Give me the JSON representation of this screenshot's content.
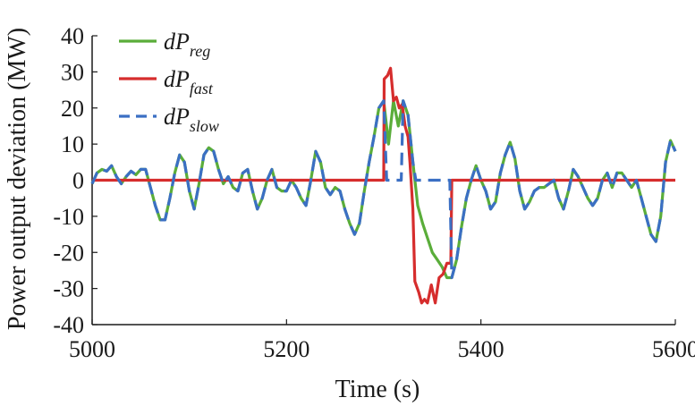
{
  "chart_data": {
    "type": "line",
    "xlabel": "Time (s)",
    "ylabel": "Power output deviation (MW)",
    "xlim": [
      5000,
      5600
    ],
    "ylim": [
      -40,
      40
    ],
    "x_ticks": [
      5000,
      5200,
      5400,
      5600
    ],
    "y_ticks": [
      40,
      30,
      20,
      10,
      0,
      -10,
      -20,
      -30,
      -40
    ],
    "grid": false,
    "legend_position": "top-left",
    "series": [
      {
        "name": "dP_reg",
        "legend_main": "dP",
        "legend_sub": "reg",
        "color": "#5aad3a",
        "style": "solid",
        "points": [
          [
            5000,
            -1
          ],
          [
            5005,
            2
          ],
          [
            5010,
            3
          ],
          [
            5015,
            2.5
          ],
          [
            5020,
            4
          ],
          [
            5025,
            1
          ],
          [
            5030,
            -1
          ],
          [
            5035,
            1
          ],
          [
            5040,
            2.5
          ],
          [
            5045,
            1.5
          ],
          [
            5050,
            3
          ],
          [
            5055,
            3
          ],
          [
            5060,
            -2
          ],
          [
            5065,
            -7
          ],
          [
            5070,
            -11
          ],
          [
            5075,
            -11
          ],
          [
            5080,
            -5
          ],
          [
            5085,
            2
          ],
          [
            5090,
            7
          ],
          [
            5095,
            5
          ],
          [
            5100,
            -3
          ],
          [
            5105,
            -8
          ],
          [
            5110,
            -1
          ],
          [
            5115,
            7
          ],
          [
            5120,
            9
          ],
          [
            5125,
            8
          ],
          [
            5130,
            3
          ],
          [
            5135,
            -1
          ],
          [
            5140,
            1
          ],
          [
            5145,
            -2
          ],
          [
            5150,
            -3
          ],
          [
            5155,
            2
          ],
          [
            5160,
            3
          ],
          [
            5165,
            -3
          ],
          [
            5170,
            -8
          ],
          [
            5175,
            -5
          ],
          [
            5180,
            0
          ],
          [
            5185,
            3
          ],
          [
            5190,
            -2
          ],
          [
            5195,
            -3
          ],
          [
            5200,
            -3
          ],
          [
            5205,
            0
          ],
          [
            5210,
            -2
          ],
          [
            5215,
            -5
          ],
          [
            5220,
            -7
          ],
          [
            5225,
            0
          ],
          [
            5230,
            8
          ],
          [
            5235,
            5
          ],
          [
            5240,
            -2
          ],
          [
            5245,
            -4
          ],
          [
            5250,
            -2
          ],
          [
            5255,
            -3
          ],
          [
            5260,
            -8
          ],
          [
            5265,
            -12
          ],
          [
            5270,
            -15
          ],
          [
            5275,
            -12
          ],
          [
            5280,
            -3
          ],
          [
            5285,
            5
          ],
          [
            5290,
            12
          ],
          [
            5295,
            20
          ],
          [
            5300,
            22
          ],
          [
            5305,
            10
          ],
          [
            5310,
            22
          ],
          [
            5315,
            15
          ],
          [
            5320,
            22
          ],
          [
            5325,
            18
          ],
          [
            5330,
            5
          ],
          [
            5335,
            -7
          ],
          [
            5340,
            -12
          ],
          [
            5345,
            -16
          ],
          [
            5350,
            -20
          ],
          [
            5355,
            -22
          ],
          [
            5360,
            -24
          ],
          [
            5365,
            -27
          ],
          [
            5370,
            -27
          ],
          [
            5375,
            -22
          ],
          [
            5380,
            -13
          ],
          [
            5385,
            -5
          ],
          [
            5390,
            0
          ],
          [
            5395,
            4
          ],
          [
            5400,
            0
          ],
          [
            5405,
            -3
          ],
          [
            5410,
            -8
          ],
          [
            5415,
            -6
          ],
          [
            5420,
            2
          ],
          [
            5425,
            7
          ],
          [
            5430,
            10.5
          ],
          [
            5435,
            6
          ],
          [
            5440,
            -3
          ],
          [
            5445,
            -8
          ],
          [
            5450,
            -6
          ],
          [
            5455,
            -3
          ],
          [
            5460,
            -2
          ],
          [
            5465,
            -2
          ],
          [
            5470,
            -1
          ],
          [
            5475,
            0
          ],
          [
            5480,
            -5
          ],
          [
            5485,
            -8
          ],
          [
            5490,
            -3
          ],
          [
            5495,
            3
          ],
          [
            5500,
            1
          ],
          [
            5505,
            -2
          ],
          [
            5510,
            -5
          ],
          [
            5515,
            -7
          ],
          [
            5520,
            -5
          ],
          [
            5525,
            0
          ],
          [
            5530,
            2
          ],
          [
            5535,
            -2
          ],
          [
            5540,
            2
          ],
          [
            5545,
            2
          ],
          [
            5550,
            0
          ],
          [
            5555,
            -2
          ],
          [
            5560,
            0
          ],
          [
            5565,
            -5
          ],
          [
            5570,
            -10
          ],
          [
            5575,
            -15
          ],
          [
            5580,
            -17
          ],
          [
            5585,
            -10
          ],
          [
            5590,
            5
          ],
          [
            5595,
            11
          ],
          [
            5600,
            8
          ]
        ]
      },
      {
        "name": "dP_fast",
        "legend_main": "dP",
        "legend_sub": "fast",
        "color": "#d62d2d",
        "style": "solid",
        "points": [
          [
            5000,
            0
          ],
          [
            5300,
            0
          ],
          [
            5300.5,
            28
          ],
          [
            5304,
            29
          ],
          [
            5307,
            31
          ],
          [
            5310,
            22
          ],
          [
            5313,
            23
          ],
          [
            5316,
            20
          ],
          [
            5319,
            21
          ],
          [
            5322,
            15
          ],
          [
            5325,
            12
          ],
          [
            5327,
            5
          ],
          [
            5330,
            -8
          ],
          [
            5332,
            -28
          ],
          [
            5336,
            -31
          ],
          [
            5339,
            -34
          ],
          [
            5342,
            -33
          ],
          [
            5345,
            -34
          ],
          [
            5349,
            -29
          ],
          [
            5353,
            -34
          ],
          [
            5357,
            -27
          ],
          [
            5361,
            -26
          ],
          [
            5365,
            -23
          ],
          [
            5369,
            -23
          ],
          [
            5370,
            0
          ],
          [
            5600,
            0
          ]
        ]
      },
      {
        "name": "dP_slow",
        "legend_main": "dP",
        "legend_sub": "slow",
        "color": "#3b6fc4",
        "style": "dashed",
        "points": [
          [
            5000,
            -1
          ],
          [
            5005,
            2
          ],
          [
            5010,
            3
          ],
          [
            5015,
            2.5
          ],
          [
            5020,
            4
          ],
          [
            5025,
            1
          ],
          [
            5030,
            -1
          ],
          [
            5035,
            1
          ],
          [
            5040,
            2.5
          ],
          [
            5045,
            1.5
          ],
          [
            5050,
            3
          ],
          [
            5055,
            3
          ],
          [
            5060,
            -2
          ],
          [
            5065,
            -7
          ],
          [
            5070,
            -11
          ],
          [
            5075,
            -11
          ],
          [
            5080,
            -5
          ],
          [
            5085,
            2
          ],
          [
            5090,
            7
          ],
          [
            5095,
            5
          ],
          [
            5100,
            -3
          ],
          [
            5105,
            -8
          ],
          [
            5110,
            -1
          ],
          [
            5115,
            7
          ],
          [
            5120,
            9
          ],
          [
            5125,
            8
          ],
          [
            5130,
            3
          ],
          [
            5135,
            -1
          ],
          [
            5140,
            1
          ],
          [
            5145,
            -2
          ],
          [
            5150,
            -3
          ],
          [
            5155,
            2
          ],
          [
            5160,
            3
          ],
          [
            5165,
            -3
          ],
          [
            5170,
            -8
          ],
          [
            5175,
            -5
          ],
          [
            5180,
            0
          ],
          [
            5185,
            3
          ],
          [
            5190,
            -2
          ],
          [
            5195,
            -3
          ],
          [
            5200,
            -3
          ],
          [
            5205,
            0
          ],
          [
            5210,
            -2
          ],
          [
            5215,
            -5
          ],
          [
            5220,
            -7
          ],
          [
            5225,
            0
          ],
          [
            5230,
            8
          ],
          [
            5235,
            5
          ],
          [
            5240,
            -2
          ],
          [
            5245,
            -4
          ],
          [
            5250,
            -2
          ],
          [
            5255,
            -3
          ],
          [
            5260,
            -8
          ],
          [
            5265,
            -12
          ],
          [
            5270,
            -15
          ],
          [
            5275,
            -12
          ],
          [
            5280,
            -3
          ],
          [
            5285,
            5
          ],
          [
            5290,
            12
          ],
          [
            5295,
            20
          ],
          [
            5300,
            22
          ],
          [
            5303,
            0
          ],
          [
            5318,
            0
          ],
          [
            5320,
            22
          ],
          [
            5325,
            18
          ],
          [
            5330,
            5
          ],
          [
            5333,
            0
          ],
          [
            5368,
            0
          ],
          [
            5370,
            -27
          ],
          [
            5375,
            -22
          ],
          [
            5380,
            -13
          ],
          [
            5385,
            -5
          ],
          [
            5390,
            0
          ],
          [
            5395,
            4
          ],
          [
            5400,
            0
          ],
          [
            5405,
            -3
          ],
          [
            5410,
            -8
          ],
          [
            5415,
            -6
          ],
          [
            5420,
            2
          ],
          [
            5425,
            7
          ],
          [
            5430,
            10.5
          ],
          [
            5435,
            6
          ],
          [
            5440,
            -3
          ],
          [
            5445,
            -8
          ],
          [
            5450,
            -6
          ],
          [
            5455,
            -3
          ],
          [
            5460,
            -2
          ],
          [
            5465,
            -2
          ],
          [
            5470,
            -1
          ],
          [
            5475,
            0
          ],
          [
            5480,
            -5
          ],
          [
            5485,
            -8
          ],
          [
            5490,
            -3
          ],
          [
            5495,
            3
          ],
          [
            5500,
            1
          ],
          [
            5505,
            -2
          ],
          [
            5510,
            -5
          ],
          [
            5515,
            -7
          ],
          [
            5520,
            -5
          ],
          [
            5525,
            0
          ],
          [
            5530,
            2
          ],
          [
            5535,
            -2
          ],
          [
            5540,
            2
          ],
          [
            5545,
            2
          ],
          [
            5550,
            0
          ],
          [
            5555,
            -2
          ],
          [
            5560,
            0
          ],
          [
            5565,
            -5
          ],
          [
            5570,
            -10
          ],
          [
            5575,
            -15
          ],
          [
            5580,
            -17
          ],
          [
            5585,
            -10
          ],
          [
            5590,
            5
          ],
          [
            5595,
            11
          ],
          [
            5600,
            8
          ]
        ]
      }
    ]
  }
}
